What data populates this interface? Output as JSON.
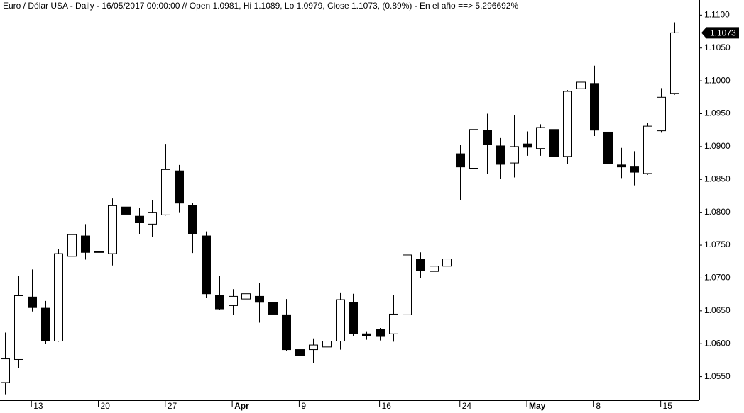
{
  "chart_data": {
    "type": "candlestick",
    "title": "Euro / Dólar USA - Daily - 16/05/2017 00:00:00 // Open 1.0981, Hi 1.1089, Lo 1.0979, Close 1.1073, (0.89%) - En el año ==> 5.296692%",
    "categories": [
      null,
      null,
      "13",
      null,
      null,
      null,
      null,
      "20",
      null,
      null,
      null,
      null,
      "27",
      null,
      null,
      null,
      null,
      "Apr",
      null,
      null,
      null,
      null,
      "9",
      null,
      null,
      null,
      null,
      null,
      "16",
      null,
      null,
      null,
      null,
      null,
      "24",
      null,
      null,
      null,
      null,
      "May",
      null,
      null,
      null,
      null,
      "8",
      null,
      null,
      null,
      null,
      "15",
      null
    ],
    "open": [
      1.0541,
      1.0576,
      1.0671,
      1.0654,
      1.0604,
      1.0733,
      1.0764,
      1.0739,
      1.0737,
      1.0808,
      1.0794,
      1.0782,
      1.0796,
      1.0863,
      1.081,
      1.0764,
      1.0673,
      1.0658,
      1.0668,
      1.0672,
      1.0663,
      1.0644,
      1.0591,
      1.0591,
      1.0595,
      1.0604,
      1.0663,
      1.0615,
      1.0622,
      1.0615,
      1.0644,
      1.0729,
      1.071,
      1.0718,
      1.0889,
      1.0867,
      1.0925,
      1.0901,
      1.0875,
      1.0904,
      1.0897,
      1.0926,
      1.0885,
      1.0988,
      1.0996,
      1.0922,
      1.0872,
      1.0869,
      1.0859,
      1.0924,
      1.0981
    ],
    "high": [
      1.0617,
      1.0703,
      1.0713,
      1.0665,
      1.0744,
      1.0773,
      1.0782,
      1.0767,
      1.0821,
      1.0826,
      1.0807,
      1.0819,
      1.0904,
      1.0872,
      1.0814,
      1.0771,
      1.0703,
      1.0683,
      1.0681,
      1.0692,
      1.0687,
      1.0668,
      1.0595,
      1.0608,
      1.063,
      1.0678,
      1.0676,
      1.0619,
      1.0624,
      1.0674,
      1.0737,
      1.0739,
      1.078,
      1.0739,
      1.0902,
      1.095,
      1.095,
      1.0913,
      1.0948,
      1.0923,
      1.0934,
      1.0929,
      1.0986,
      1.1001,
      1.1023,
      1.0933,
      1.0898,
      1.0893,
      1.0936,
      1.0989,
      1.1089
    ],
    "low": [
      1.0523,
      1.0563,
      1.0649,
      1.06,
      1.0603,
      1.0705,
      1.0728,
      1.0726,
      1.0719,
      1.0776,
      1.0767,
      1.0762,
      1.0795,
      1.08,
      1.0738,
      1.067,
      1.0652,
      1.0644,
      1.0636,
      1.0632,
      1.063,
      1.0589,
      1.0576,
      1.057,
      1.059,
      1.0591,
      1.0611,
      1.0606,
      1.0605,
      1.0603,
      1.0636,
      1.07,
      1.0697,
      1.0681,
      1.0819,
      1.0851,
      1.0858,
      1.0851,
      1.0853,
      1.0886,
      1.0886,
      1.0881,
      1.0874,
      1.0948,
      1.0916,
      1.0862,
      1.0852,
      1.0841,
      1.0857,
      1.0921,
      1.0979
    ],
    "close": [
      1.0577,
      1.0673,
      1.0655,
      1.0604,
      1.0737,
      1.0766,
      1.0739,
      1.074,
      1.081,
      1.0797,
      1.0784,
      1.08,
      1.0865,
      1.0814,
      1.0767,
      1.0676,
      1.0653,
      1.0672,
      1.0676,
      1.0663,
      1.0645,
      1.0591,
      1.0582,
      1.0598,
      1.0604,
      1.0667,
      1.0615,
      1.0612,
      1.0611,
      1.0645,
      1.0735,
      1.0711,
      1.0718,
      1.0729,
      1.0869,
      1.0926,
      1.0903,
      1.0873,
      1.09,
      1.0899,
      1.0929,
      1.0885,
      1.0984,
      1.0998,
      1.0925,
      1.0874,
      1.0869,
      1.0861,
      1.0931,
      1.0975,
      1.1073
    ],
    "ylim": [
      1.0514,
      1.1123
    ],
    "yticks": [
      {
        "value": 1.055,
        "label": "1.0550"
      },
      {
        "value": 1.06,
        "label": "1.0600"
      },
      {
        "value": 1.065,
        "label": "1.0650"
      },
      {
        "value": 1.07,
        "label": "1.0700"
      },
      {
        "value": 1.075,
        "label": "1.0750"
      },
      {
        "value": 1.08,
        "label": "1.0800"
      },
      {
        "value": 1.085,
        "label": "1.0850"
      },
      {
        "value": 1.09,
        "label": "1.0900"
      },
      {
        "value": 1.095,
        "label": "1.0950"
      },
      {
        "value": 1.1,
        "label": "1.1000"
      },
      {
        "value": 1.105,
        "label": "1.1050"
      },
      {
        "value": 1.11,
        "label": "1.1100"
      }
    ],
    "up_color": "#ffffff",
    "down_color": "#000000",
    "line_color": "#000000"
  }
}
